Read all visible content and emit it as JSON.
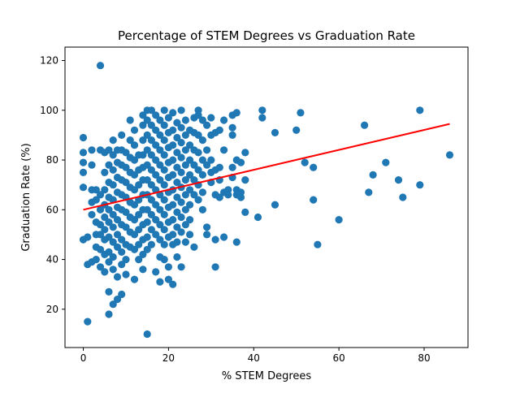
{
  "chart_data": {
    "type": "scatter",
    "title": "Percentage of STEM Degrees vs Graduation Rate",
    "xlabel": "% STEM Degrees",
    "ylabel": "Graduation Rate (%)",
    "xlim": [
      -4.3,
      90.3
    ],
    "ylim": [
      4.6,
      125.4
    ],
    "xticks": [
      0,
      20,
      40,
      60,
      80
    ],
    "yticks": [
      20,
      40,
      60,
      80,
      100,
      120
    ],
    "grid": false,
    "legend": "none",
    "colors": {
      "points": "#1f77b4",
      "trend_line": "#ff0000"
    },
    "trend_line": {
      "x": [
        0,
        86
      ],
      "y": [
        60,
        94.5
      ]
    },
    "points": [
      [
        4,
        118
      ],
      [
        15,
        10
      ],
      [
        1,
        15
      ],
      [
        0,
        89
      ],
      [
        0,
        83
      ],
      [
        0,
        79
      ],
      [
        0,
        75
      ],
      [
        0,
        69
      ],
      [
        0,
        48
      ],
      [
        1,
        49
      ],
      [
        1,
        38
      ],
      [
        2,
        39
      ],
      [
        3,
        40
      ],
      [
        4,
        37
      ],
      [
        5,
        35
      ],
      [
        6,
        27
      ],
      [
        6,
        18
      ],
      [
        7,
        22
      ],
      [
        8,
        24
      ],
      [
        9,
        26
      ],
      [
        2,
        84
      ],
      [
        2,
        78
      ],
      [
        2,
        68
      ],
      [
        2,
        63
      ],
      [
        2,
        58
      ],
      [
        3,
        68
      ],
      [
        3,
        64
      ],
      [
        3,
        55
      ],
      [
        3,
        50
      ],
      [
        3,
        45
      ],
      [
        4,
        84
      ],
      [
        4,
        66
      ],
      [
        4,
        60
      ],
      [
        4,
        54
      ],
      [
        4,
        50
      ],
      [
        4,
        44
      ],
      [
        5,
        83
      ],
      [
        5,
        75
      ],
      [
        5,
        68
      ],
      [
        5,
        62
      ],
      [
        5,
        57
      ],
      [
        5,
        52
      ],
      [
        5,
        48
      ],
      [
        5,
        42
      ],
      [
        6,
        84
      ],
      [
        6,
        78
      ],
      [
        6,
        71
      ],
      [
        6,
        65
      ],
      [
        6,
        60
      ],
      [
        6,
        55
      ],
      [
        6,
        49
      ],
      [
        6,
        43
      ],
      [
        6,
        39
      ],
      [
        7,
        88
      ],
      [
        7,
        82
      ],
      [
        7,
        76
      ],
      [
        7,
        70
      ],
      [
        7,
        64
      ],
      [
        7,
        58
      ],
      [
        7,
        53
      ],
      [
        7,
        47
      ],
      [
        7,
        41
      ],
      [
        7,
        36
      ],
      [
        8,
        84
      ],
      [
        8,
        79
      ],
      [
        8,
        73
      ],
      [
        8,
        67
      ],
      [
        8,
        61
      ],
      [
        8,
        56
      ],
      [
        8,
        50
      ],
      [
        8,
        45
      ],
      [
        8,
        33
      ],
      [
        9,
        90
      ],
      [
        9,
        84
      ],
      [
        9,
        78
      ],
      [
        9,
        72
      ],
      [
        9,
        66
      ],
      [
        9,
        60
      ],
      [
        9,
        54
      ],
      [
        9,
        48
      ],
      [
        9,
        43
      ],
      [
        9,
        38
      ],
      [
        10,
        83
      ],
      [
        10,
        77
      ],
      [
        10,
        71
      ],
      [
        10,
        65
      ],
      [
        10,
        59
      ],
      [
        10,
        53
      ],
      [
        10,
        46
      ],
      [
        10,
        40
      ],
      [
        10,
        34
      ],
      [
        11,
        96
      ],
      [
        11,
        88
      ],
      [
        11,
        81
      ],
      [
        11,
        75
      ],
      [
        11,
        69
      ],
      [
        11,
        63
      ],
      [
        11,
        57
      ],
      [
        11,
        51
      ],
      [
        11,
        45
      ],
      [
        12,
        92
      ],
      [
        12,
        86
      ],
      [
        12,
        80
      ],
      [
        12,
        74
      ],
      [
        12,
        68
      ],
      [
        12,
        62
      ],
      [
        12,
        56
      ],
      [
        12,
        50
      ],
      [
        12,
        44
      ],
      [
        12,
        32
      ],
      [
        13,
        82
      ],
      [
        13,
        76
      ],
      [
        13,
        70
      ],
      [
        13,
        64
      ],
      [
        13,
        58
      ],
      [
        13,
        52
      ],
      [
        13,
        46
      ],
      [
        13,
        40
      ],
      [
        14,
        98
      ],
      [
        14,
        94
      ],
      [
        14,
        88
      ],
      [
        14,
        82
      ],
      [
        14,
        77
      ],
      [
        14,
        72
      ],
      [
        14,
        66
      ],
      [
        14,
        60
      ],
      [
        14,
        54
      ],
      [
        14,
        48
      ],
      [
        14,
        42
      ],
      [
        14,
        36
      ],
      [
        15,
        100
      ],
      [
        15,
        96
      ],
      [
        15,
        90
      ],
      [
        15,
        84
      ],
      [
        15,
        78
      ],
      [
        15,
        72
      ],
      [
        15,
        66
      ],
      [
        15,
        60
      ],
      [
        15,
        55
      ],
      [
        15,
        49
      ],
      [
        15,
        44
      ],
      [
        16,
        100
      ],
      [
        16,
        94
      ],
      [
        16,
        88
      ],
      [
        16,
        82
      ],
      [
        16,
        76
      ],
      [
        16,
        70
      ],
      [
        16,
        64
      ],
      [
        16,
        58
      ],
      [
        16,
        52
      ],
      [
        16,
        46
      ],
      [
        17,
        98
      ],
      [
        17,
        92
      ],
      [
        17,
        86
      ],
      [
        17,
        80
      ],
      [
        17,
        74
      ],
      [
        17,
        68
      ],
      [
        17,
        62
      ],
      [
        17,
        56
      ],
      [
        17,
        50
      ],
      [
        17,
        35
      ],
      [
        18,
        96
      ],
      [
        18,
        90
      ],
      [
        18,
        84
      ],
      [
        18,
        78
      ],
      [
        18,
        72
      ],
      [
        18,
        66
      ],
      [
        18,
        60
      ],
      [
        18,
        54
      ],
      [
        18,
        48
      ],
      [
        18,
        41
      ],
      [
        18,
        31
      ],
      [
        19,
        100
      ],
      [
        19,
        94
      ],
      [
        19,
        88
      ],
      [
        19,
        82
      ],
      [
        19,
        76
      ],
      [
        19,
        70
      ],
      [
        19,
        64
      ],
      [
        19,
        58
      ],
      [
        19,
        52
      ],
      [
        19,
        46
      ],
      [
        19,
        40
      ],
      [
        20,
        97
      ],
      [
        20,
        91
      ],
      [
        20,
        85
      ],
      [
        20,
        79
      ],
      [
        20,
        73
      ],
      [
        20,
        67
      ],
      [
        20,
        61
      ],
      [
        20,
        55
      ],
      [
        20,
        49
      ],
      [
        20,
        37
      ],
      [
        20,
        32
      ],
      [
        21,
        99
      ],
      [
        21,
        92
      ],
      [
        21,
        86
      ],
      [
        21,
        80
      ],
      [
        21,
        74
      ],
      [
        21,
        68
      ],
      [
        21,
        62
      ],
      [
        21,
        56
      ],
      [
        21,
        50
      ],
      [
        21,
        46
      ],
      [
        21,
        30
      ],
      [
        22,
        95
      ],
      [
        22,
        89
      ],
      [
        22,
        83
      ],
      [
        22,
        77
      ],
      [
        22,
        71
      ],
      [
        22,
        65
      ],
      [
        22,
        59
      ],
      [
        22,
        53
      ],
      [
        22,
        47
      ],
      [
        22,
        41
      ],
      [
        23,
        100
      ],
      [
        23,
        93
      ],
      [
        23,
        87
      ],
      [
        23,
        81
      ],
      [
        23,
        75
      ],
      [
        23,
        69
      ],
      [
        23,
        63
      ],
      [
        23,
        57
      ],
      [
        23,
        51
      ],
      [
        23,
        37
      ],
      [
        24,
        96
      ],
      [
        24,
        90
      ],
      [
        24,
        84
      ],
      [
        24,
        78
      ],
      [
        24,
        72
      ],
      [
        24,
        66
      ],
      [
        24,
        60
      ],
      [
        24,
        54
      ],
      [
        24,
        47
      ],
      [
        25,
        92
      ],
      [
        25,
        86
      ],
      [
        25,
        80
      ],
      [
        25,
        74
      ],
      [
        25,
        68
      ],
      [
        25,
        62
      ],
      [
        25,
        56
      ],
      [
        25,
        50
      ],
      [
        26,
        97
      ],
      [
        26,
        91
      ],
      [
        26,
        84
      ],
      [
        26,
        78
      ],
      [
        26,
        72
      ],
      [
        26,
        66
      ],
      [
        26,
        45
      ],
      [
        27,
        100
      ],
      [
        27,
        98
      ],
      [
        27,
        90
      ],
      [
        27,
        83
      ],
      [
        27,
        76
      ],
      [
        27,
        70
      ],
      [
        27,
        64
      ],
      [
        28,
        96
      ],
      [
        28,
        88
      ],
      [
        28,
        80
      ],
      [
        28,
        74
      ],
      [
        28,
        67
      ],
      [
        28,
        60
      ],
      [
        29,
        94
      ],
      [
        29,
        84
      ],
      [
        29,
        78
      ],
      [
        29,
        53
      ],
      [
        29,
        50
      ],
      [
        30,
        97
      ],
      [
        30,
        90
      ],
      [
        30,
        80
      ],
      [
        30,
        75
      ],
      [
        30,
        71
      ],
      [
        31,
        91
      ],
      [
        31,
        76
      ],
      [
        31,
        66
      ],
      [
        31,
        48
      ],
      [
        31,
        37
      ],
      [
        32,
        92
      ],
      [
        32,
        77
      ],
      [
        32,
        72
      ],
      [
        32,
        65
      ],
      [
        33,
        96
      ],
      [
        33,
        84
      ],
      [
        33,
        67
      ],
      [
        33,
        49
      ],
      [
        34,
        68
      ],
      [
        34,
        66
      ],
      [
        35,
        98
      ],
      [
        35,
        93
      ],
      [
        35,
        90
      ],
      [
        35,
        77
      ],
      [
        35,
        73
      ],
      [
        36,
        99
      ],
      [
        36,
        80
      ],
      [
        36,
        68
      ],
      [
        36,
        66
      ],
      [
        36,
        47
      ],
      [
        37,
        79
      ],
      [
        37,
        67
      ],
      [
        37,
        65
      ],
      [
        38,
        83
      ],
      [
        38,
        72
      ],
      [
        38,
        59
      ],
      [
        41,
        57
      ],
      [
        42,
        100
      ],
      [
        42,
        97
      ],
      [
        45,
        91
      ],
      [
        45,
        62
      ],
      [
        50,
        92
      ],
      [
        51,
        99
      ],
      [
        52,
        79
      ],
      [
        54,
        77
      ],
      [
        54,
        64
      ],
      [
        55,
        46
      ],
      [
        60,
        56
      ],
      [
        66,
        94
      ],
      [
        67,
        67
      ],
      [
        68,
        74
      ],
      [
        71,
        79
      ],
      [
        74,
        72
      ],
      [
        75,
        65
      ],
      [
        79,
        100
      ],
      [
        79,
        70
      ],
      [
        86,
        82
      ]
    ]
  }
}
